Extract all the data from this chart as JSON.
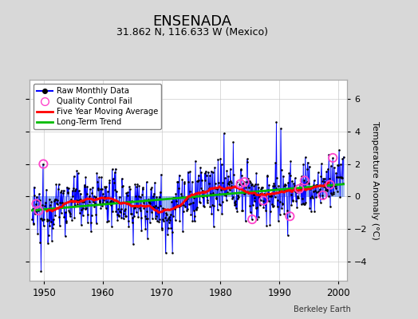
{
  "title": "ENSENADA",
  "subtitle": "31.862 N, 116.633 W (Mexico)",
  "ylabel": "Temperature Anomaly (°C)",
  "xlim": [
    1947.5,
    2001.5
  ],
  "ylim": [
    -5.2,
    7.2
  ],
  "yticks": [
    -4,
    -2,
    0,
    2,
    4,
    6
  ],
  "xticks": [
    1950,
    1960,
    1970,
    1980,
    1990,
    2000
  ],
  "background_color": "#d8d8d8",
  "plot_bg_color": "#ffffff",
  "title_fontsize": 13,
  "subtitle_fontsize": 9,
  "credit": "Berkeley Earth",
  "seed": 12345,
  "years_start": 1948,
  "years_end": 2000,
  "trend_slope": 0.028,
  "trend_intercept": -0.75,
  "noise_std": 0.9
}
